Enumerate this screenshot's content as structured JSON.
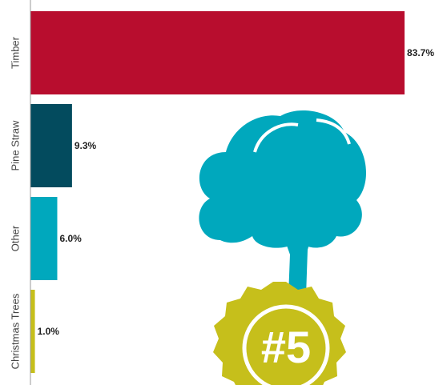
{
  "chart_data": {
    "type": "bar",
    "orientation": "horizontal",
    "categories": [
      "Timber",
      "Pine Straw",
      "Other",
      "Christmas Trees"
    ],
    "values": [
      83.7,
      9.3,
      6.0,
      1.0
    ],
    "value_labels": [
      "83.7%",
      "9.3%",
      "6.0%",
      "1.0%"
    ],
    "colors": [
      "#b80d2e",
      "#034b5e",
      "#00a8bd",
      "#c6bf1b"
    ],
    "annotation": "#5"
  }
}
